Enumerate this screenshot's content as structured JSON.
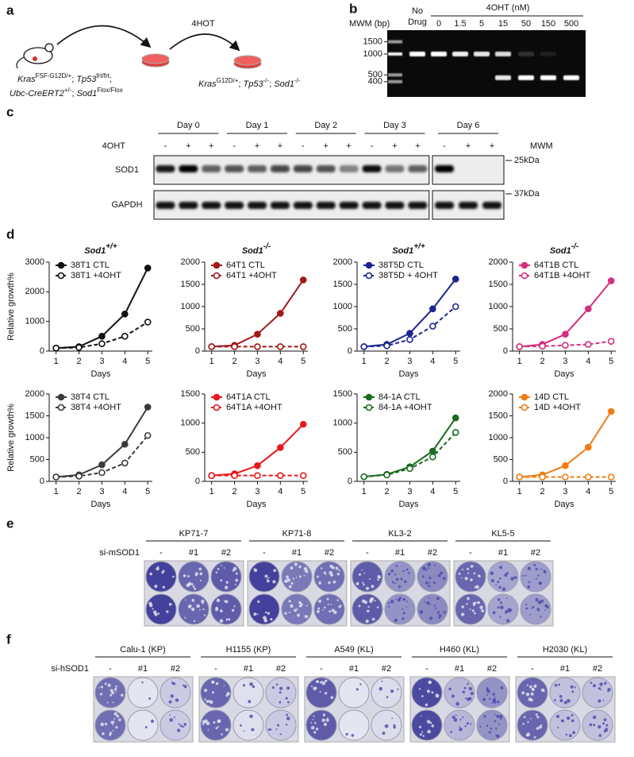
{
  "panel_a": {
    "label": "a",
    "treatment": "4HOT",
    "genotype_before": [
      [
        {
          "t": "Kras",
          "s": "i"
        },
        {
          "t": "FSF-G12D/+",
          "s": "sup"
        },
        {
          "t": "; ",
          "s": "n"
        },
        {
          "t": "Tp53",
          "s": "i"
        },
        {
          "t": "frt/frt",
          "s": "sup"
        },
        {
          "t": ";",
          "s": "n"
        }
      ],
      [
        {
          "t": "Ubc-CreERT2",
          "s": "i"
        },
        {
          "t": "+/-",
          "s": "sup"
        },
        {
          "t": "; ",
          "s": "n"
        },
        {
          "t": "Sod1",
          "s": "i"
        },
        {
          "t": "Flox/Flox",
          "s": "sup"
        }
      ]
    ],
    "genotype_after": [
      [
        {
          "t": "Kras",
          "s": "i"
        },
        {
          "t": "G12D/+",
          "s": "sup"
        },
        {
          "t": "; ",
          "s": "n"
        },
        {
          "t": "Tp53",
          "s": "i"
        },
        {
          "t": "-/-",
          "s": "sup"
        },
        {
          "t": "; ",
          "s": "n"
        },
        {
          "t": "Sod1",
          "s": "i"
        },
        {
          "t": "-/-",
          "s": "sup"
        }
      ]
    ]
  },
  "panel_b": {
    "label": "b",
    "marker_title": "MWM (bp)",
    "no_drug": [
      "No",
      "Drug"
    ],
    "drug_header": "4OHT (nM)",
    "doses": [
      "0",
      "1.5",
      "5",
      "15",
      "50",
      "150",
      "500"
    ],
    "markers": [
      1500,
      1000,
      500,
      400
    ]
  },
  "panel_c": {
    "label": "c",
    "days": [
      "Day 0",
      "Day 1",
      "Day 2",
      "Day 3",
      "Day 6"
    ],
    "treatment": "4OHT",
    "lane_marks": [
      "-",
      "+",
      "+"
    ],
    "marker_title": "MWM",
    "proteins": [
      "SOD1",
      "GAPDH"
    ],
    "markers": [
      "25kDa",
      "37kDa"
    ]
  },
  "panel_d": {
    "label": "d"
  },
  "chart_data": [
    {
      "type": "line",
      "title": "Sod1",
      "title_sup": "+/+",
      "ylabel": "Relative growth%",
      "xlabel": "Days",
      "x": [
        1,
        2,
        3,
        4,
        5
      ],
      "xlim": [
        0.7,
        5.2
      ],
      "xticks": [
        1,
        2,
        3,
        4,
        5
      ],
      "ylim": [
        0,
        3000
      ],
      "yticks": [
        0,
        1000,
        2000,
        3000
      ],
      "series": [
        {
          "name": "38T1 CTL",
          "color": "#111111",
          "style": "solid",
          "values": [
            100,
            150,
            500,
            1250,
            2800
          ]
        },
        {
          "name": "38T1 +4OHT",
          "color": "#111111",
          "style": "dashed",
          "values": [
            100,
            120,
            250,
            500,
            980
          ]
        }
      ]
    },
    {
      "type": "line",
      "title": "Sod1",
      "title_sup": "-/-",
      "xlabel": "Days",
      "x": [
        1,
        2,
        3,
        4,
        5
      ],
      "xlim": [
        0.7,
        5.2
      ],
      "xticks": [
        1,
        2,
        3,
        4,
        5
      ],
      "ylim": [
        0,
        2000
      ],
      "yticks": [
        0,
        500,
        1000,
        1500,
        2000
      ],
      "series": [
        {
          "name": "64T1 CTL",
          "color": "#a01818",
          "style": "solid",
          "values": [
            100,
            130,
            380,
            850,
            1600
          ]
        },
        {
          "name": "64T1 +4OHT",
          "color": "#a01818",
          "style": "dashed",
          "values": [
            100,
            100,
            100,
            100,
            100
          ]
        }
      ]
    },
    {
      "type": "line",
      "title": "Sod1",
      "title_sup": "+/+",
      "xlabel": "Days",
      "x": [
        1,
        2,
        3,
        4,
        5
      ],
      "xlim": [
        0.7,
        5.2
      ],
      "xticks": [
        1,
        2,
        3,
        4,
        5
      ],
      "ylim": [
        0,
        2000
      ],
      "yticks": [
        0,
        500,
        1000,
        1500,
        2000
      ],
      "series": [
        {
          "name": "38T5D CTL",
          "color": "#1c2590",
          "style": "solid",
          "values": [
            100,
            150,
            400,
            950,
            1620
          ]
        },
        {
          "name": "38T5D + 4OHT",
          "color": "#1c2590",
          "style": "dashed",
          "values": [
            100,
            120,
            260,
            560,
            1000
          ]
        }
      ]
    },
    {
      "type": "line",
      "title": "Sod1",
      "title_sup": "-/-",
      "xlabel": "Days",
      "x": [
        1,
        2,
        3,
        4,
        5
      ],
      "xlim": [
        0.7,
        5.2
      ],
      "xticks": [
        1,
        2,
        3,
        4,
        5
      ],
      "ylim": [
        0,
        2000
      ],
      "yticks": [
        0,
        500,
        1000,
        1500,
        2000
      ],
      "series": [
        {
          "name": "64T1B CTL",
          "color": "#d22f7e",
          "style": "solid",
          "values": [
            100,
            150,
            380,
            950,
            1580
          ]
        },
        {
          "name": "64T1B +4OHT",
          "color": "#d22f7e",
          "style": "dashed",
          "values": [
            100,
            110,
            130,
            150,
            220
          ]
        }
      ]
    },
    {
      "type": "line",
      "ylabel": "Relative growth%",
      "xlabel": "Days",
      "x": [
        1,
        2,
        3,
        4,
        5
      ],
      "xlim": [
        0.7,
        5.2
      ],
      "xticks": [
        1,
        2,
        3,
        4,
        5
      ],
      "ylim": [
        0,
        2000
      ],
      "yticks": [
        0,
        500,
        1000,
        1500,
        2000
      ],
      "series": [
        {
          "name": "38T4 CTL",
          "color": "#3a3a3a",
          "style": "solid",
          "values": [
            100,
            150,
            380,
            850,
            1700
          ]
        },
        {
          "name": "38T4 +4OHT",
          "color": "#3a3a3a",
          "style": "dashed",
          "values": [
            100,
            120,
            200,
            420,
            1050
          ]
        }
      ]
    },
    {
      "type": "line",
      "xlabel": "Days",
      "x": [
        1,
        2,
        3,
        4,
        5
      ],
      "xlim": [
        0.7,
        5.2
      ],
      "xticks": [
        1,
        2,
        3,
        4,
        5
      ],
      "ylim": [
        0,
        1500
      ],
      "yticks": [
        0,
        500,
        1000,
        1500
      ],
      "series": [
        {
          "name": "64T1A CTL",
          "color": "#e8191c",
          "style": "solid",
          "values": [
            100,
            130,
            270,
            580,
            980
          ]
        },
        {
          "name": "64T1A +4OHT",
          "color": "#e8191c",
          "style": "dashed",
          "values": [
            100,
            100,
            100,
            100,
            100
          ]
        }
      ]
    },
    {
      "type": "line",
      "xlabel": "Days",
      "x": [
        1,
        2,
        3,
        4,
        5
      ],
      "xlim": [
        0.7,
        5.2
      ],
      "xticks": [
        1,
        2,
        3,
        4,
        5
      ],
      "ylim": [
        0,
        1500
      ],
      "yticks": [
        0,
        500,
        1000,
        1500
      ],
      "series": [
        {
          "name": "84-1A CTL",
          "color": "#1b6b1f",
          "style": "solid",
          "values": [
            80,
            120,
            250,
            520,
            1090
          ]
        },
        {
          "name": "84-1A +4OHT",
          "color": "#1b6b1f",
          "style": "dashed",
          "values": [
            80,
            110,
            220,
            420,
            840
          ]
        }
      ]
    },
    {
      "type": "line",
      "xlabel": "Days",
      "x": [
        1,
        2,
        3,
        4,
        5
      ],
      "xlim": [
        0.7,
        5.2
      ],
      "xticks": [
        1,
        2,
        3,
        4,
        5
      ],
      "ylim": [
        0,
        2000
      ],
      "yticks": [
        0,
        500,
        1000,
        1500,
        2000
      ],
      "series": [
        {
          "name": "14D CTL",
          "color": "#f07c14",
          "style": "solid",
          "values": [
            100,
            150,
            360,
            780,
            1600
          ]
        },
        {
          "name": "14D +4OHT",
          "color": "#f07c14",
          "style": "dashed",
          "values": [
            100,
            100,
            100,
            100,
            100
          ]
        }
      ]
    }
  ],
  "panel_e": {
    "label": "e",
    "knockdown": "si-mSOD1",
    "lines": [
      "KP71-7",
      "KP71-8",
      "KL3-2",
      "KL5-5"
    ],
    "conditions": [
      "-",
      "#1",
      "#2"
    ]
  },
  "panel_f": {
    "label": "f",
    "knockdown": "si-hSOD1",
    "lines": [
      "Calu-1 (KP)",
      "H1155 (KP)",
      "A549 (KL)",
      "H460 (KL)",
      "H2030 (KL)"
    ],
    "conditions": [
      "-",
      "#1",
      "#2"
    ]
  }
}
